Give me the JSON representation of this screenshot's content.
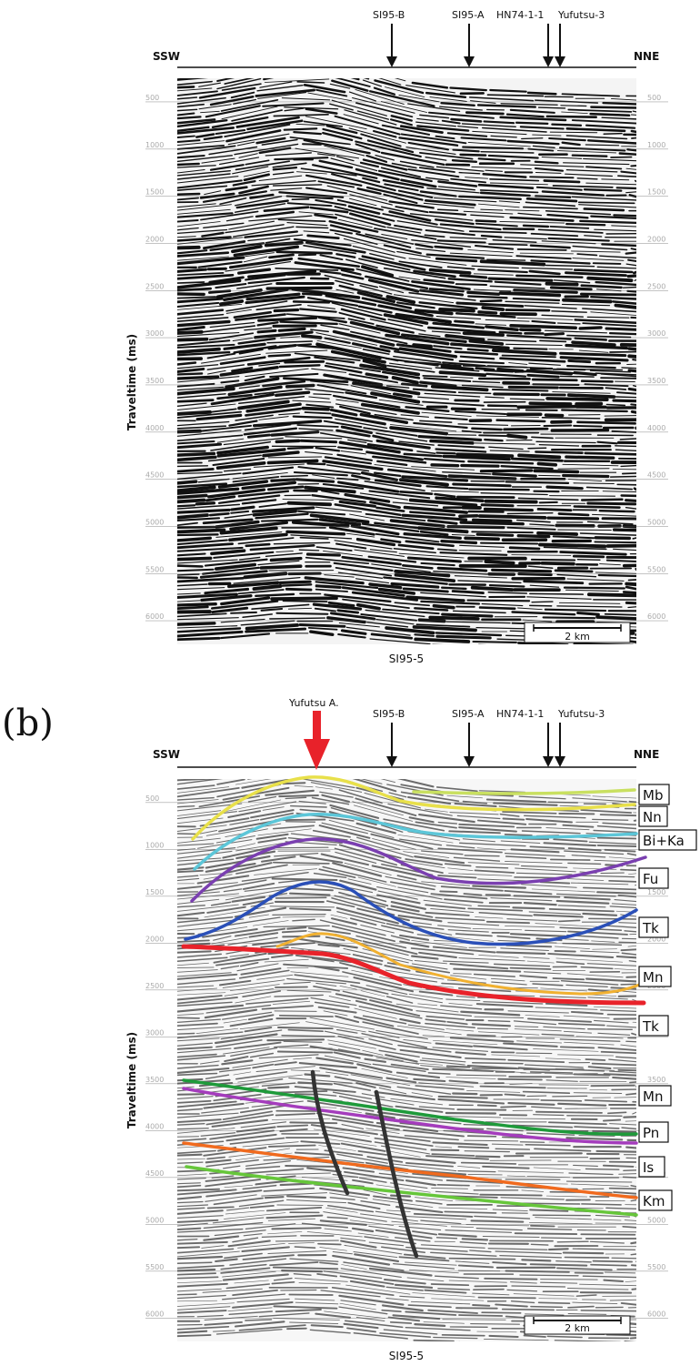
{
  "panel_b_label": "(b)",
  "direction": {
    "left": "SSW",
    "right": "NNE"
  },
  "wells": [
    {
      "name": "SI95-B"
    },
    {
      "name": "SI95-A"
    },
    {
      "name": "HN74-1-1"
    },
    {
      "name": "Yufutsu-3"
    }
  ],
  "yufutsu_marker": "Yufutsu A.",
  "y_axis_label": "Traveltime (ms)",
  "line_name": "SI95-5",
  "scale_bar": "2 km",
  "time_ticks": [
    "500",
    "1000",
    "1500",
    "2000",
    "2500",
    "3000",
    "3500",
    "4000",
    "4500",
    "5000",
    "5500",
    "6000"
  ],
  "units": [
    {
      "label": "Mb",
      "color": "#c9e060"
    },
    {
      "label": "Nn",
      "color": "#e8e04a"
    },
    {
      "label": "Bi+Ka",
      "color": "#5cc6d8"
    },
    {
      "label": "Fu",
      "color": "#7a3fb0"
    },
    {
      "label": "Tk",
      "color": "#2a4fb8"
    },
    {
      "label": "Mn",
      "color": "#e8222a"
    },
    {
      "label": "Tk",
      "color": "#f0b030"
    },
    {
      "label": "Mn",
      "color": "#1e9a3a"
    },
    {
      "label": "Pn",
      "color": "#a43cbc"
    },
    {
      "label": "Is",
      "color": "#f06a1e"
    },
    {
      "label": "Km",
      "color": "#66c63a"
    }
  ],
  "colors": {
    "marker_red": "#e8222a",
    "fault": "#333333"
  }
}
